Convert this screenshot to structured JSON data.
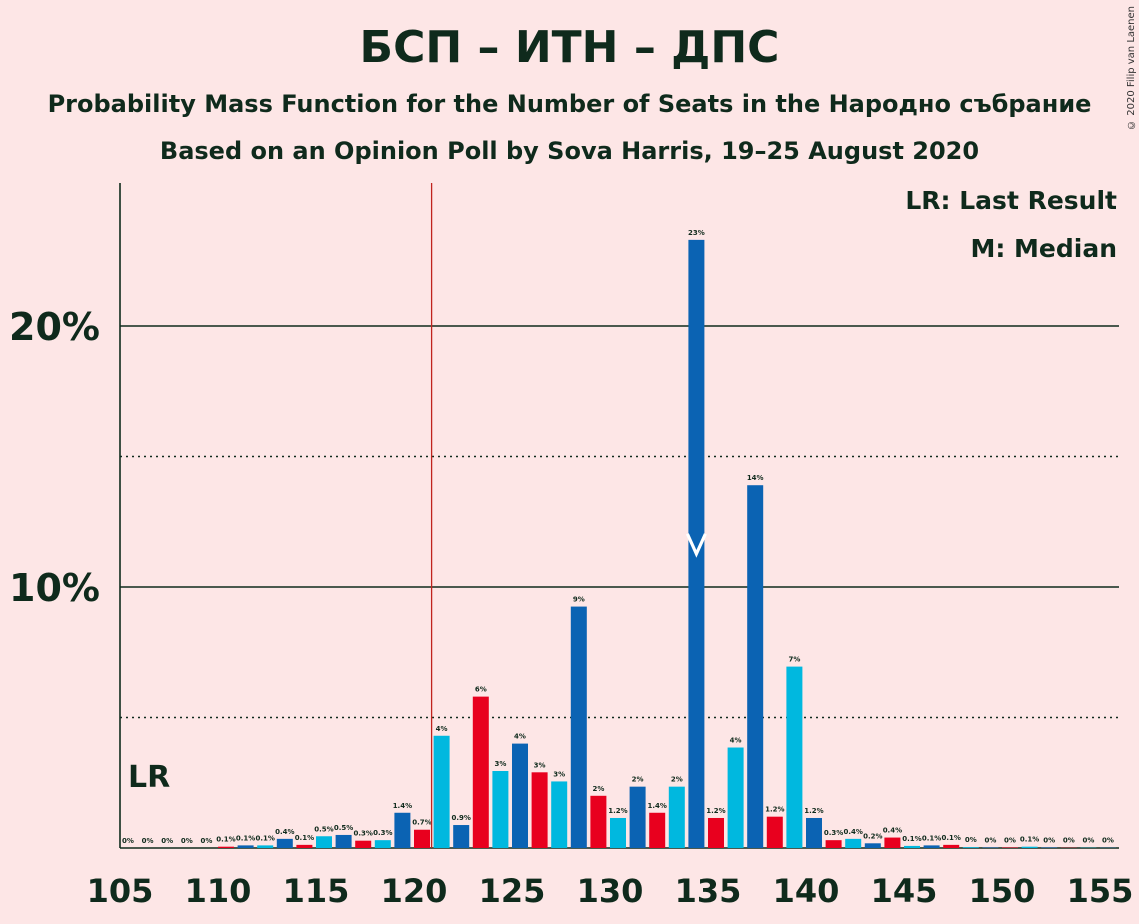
{
  "title": "БСП – ИТН – ДПС",
  "subtitle": "Probability Mass Function for the Number of Seats in the Народно събрание",
  "subtitle2": "Based on an Opinion Poll by Sova Harris, 19–25 August 2020",
  "copyright": "© 2020 Filip van Laenen",
  "legend": {
    "lr": "LR: Last Result",
    "m": "M: Median"
  },
  "lr_marker": "LR",
  "median_marker": "M",
  "colors": {
    "background": "#fde6e6",
    "dark_blue": "#0b63b3",
    "light_blue": "#00b8df",
    "red": "#e8001e",
    "last_result_line": "#c0231d",
    "axis": "#0f2a1c"
  },
  "chart_data": {
    "type": "bar",
    "title": "БСП – ИТН – ДПС",
    "x": [
      105,
      106,
      107,
      108,
      109,
      110,
      111,
      112,
      113,
      114,
      115,
      116,
      117,
      118,
      119,
      120,
      121,
      122,
      123,
      124,
      125,
      126,
      127,
      128,
      129,
      130,
      131,
      132,
      133,
      134,
      135,
      136,
      137,
      138,
      139,
      140,
      141,
      142,
      143,
      144,
      145,
      146,
      147,
      148,
      149,
      150,
      151,
      152,
      153,
      154,
      155
    ],
    "values": [
      0,
      0,
      0,
      0,
      0,
      0.05,
      0.1,
      0.1,
      0.35,
      0.12,
      0.45,
      0.5,
      0.28,
      0.3,
      1.35,
      0.7,
      4.3,
      0.88,
      5.8,
      2.95,
      4.0,
      2.9,
      2.55,
      9.25,
      2.0,
      1.15,
      2.35,
      1.35,
      2.35,
      23.3,
      1.15,
      3.85,
      13.9,
      1.2,
      6.95,
      1.15,
      0.3,
      0.35,
      0.18,
      0.4,
      0.08,
      0.1,
      0.12,
      0.03,
      0.02,
      0.02,
      0.05,
      0.02,
      0.01,
      0.01,
      0.01
    ],
    "labels": [
      "0%",
      "0%",
      "0%",
      "0%",
      "0%",
      "0.1%",
      "0.1%",
      "0.1%",
      "0.4%",
      "0.1%",
      "0.5%",
      "0.5%",
      "0.3%",
      "0.3%",
      "1.4%",
      "0.7%",
      "4%",
      "0.9%",
      "6%",
      "3%",
      "4%",
      "3%",
      "3%",
      "9%",
      "2%",
      "1.2%",
      "2%",
      "1.4%",
      "2%",
      "23%",
      "1.2%",
      "4%",
      "14%",
      "1.2%",
      "7%",
      "1.2%",
      "0.3%",
      "0.4%",
      "0.2%",
      "0.4%",
      "0.1%",
      "0.1%",
      "0.1%",
      "0%",
      "0%",
      "0%",
      "0.1%",
      "0%",
      "0%",
      "0%",
      "0%"
    ],
    "colors": [
      "dark_blue",
      "light_blue",
      "red",
      "dark_blue",
      "light_blue",
      "red",
      "dark_blue",
      "light_blue",
      "dark_blue",
      "red",
      "light_blue",
      "dark_blue",
      "red",
      "light_blue",
      "dark_blue",
      "red",
      "light_blue",
      "dark_blue",
      "red",
      "light_blue",
      "dark_blue",
      "red",
      "light_blue",
      "dark_blue",
      "red",
      "light_blue",
      "dark_blue",
      "red",
      "light_blue",
      "dark_blue",
      "red",
      "light_blue",
      "dark_blue",
      "red",
      "light_blue",
      "dark_blue",
      "red",
      "light_blue",
      "dark_blue",
      "red",
      "light_blue",
      "dark_blue",
      "red",
      "light_blue",
      "dark_blue",
      "red",
      "light_blue",
      "dark_blue",
      "red",
      "light_blue",
      "dark_blue"
    ],
    "x_ticks": [
      105,
      110,
      115,
      120,
      125,
      130,
      135,
      140,
      145,
      150,
      155
    ],
    "x_tick_labels": [
      "105",
      "110",
      "115",
      "120",
      "125",
      "130",
      "135",
      "140",
      "145",
      "150",
      "155"
    ],
    "y_ticks_major": [
      10,
      20
    ],
    "y_tick_labels": [
      "10%",
      "20%"
    ],
    "y_ticks_minor": [
      5,
      15
    ],
    "ylim": [
      0,
      25.5
    ],
    "xlim": [
      104.5,
      155.5
    ],
    "last_result": 121,
    "median": 134,
    "median_y": 11.5,
    "legend_position": "top-right"
  }
}
